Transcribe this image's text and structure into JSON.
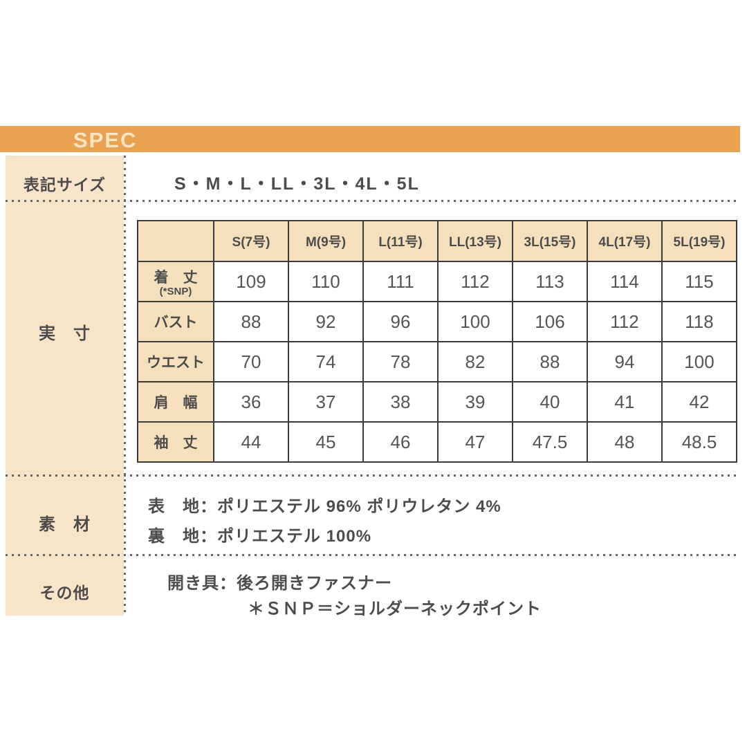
{
  "colors": {
    "banner_orange": "#e9a250",
    "banner_text": "#f8e3c2",
    "sidebar_peach": "#f8e5c9",
    "table_header_peach": "#f5dfbd",
    "table_border": "#3b3b3b",
    "text_gray": "#4c4c4c",
    "dots_gray": "#666666"
  },
  "banner": {
    "title": "SPEC"
  },
  "sidebar": {
    "size_label": "表記サイズ",
    "actual_label": "実　寸",
    "material_label": "素　材",
    "other_label": "その他"
  },
  "size_row": {
    "value": "S・M・L・LL・3L・4L・5L"
  },
  "table": {
    "columns": [
      "S(7号)",
      "M(9号)",
      "L(11号)",
      "LL(13号)",
      "3L(15号)",
      "4L(17号)",
      "5L(19号)"
    ],
    "rows": [
      {
        "label": "着　丈",
        "sublabel": "(*SNP)",
        "values": [
          "109",
          "110",
          "111",
          "112",
          "113",
          "114",
          "115"
        ]
      },
      {
        "label": "バスト",
        "sublabel": "",
        "values": [
          "88",
          "92",
          "96",
          "100",
          "106",
          "112",
          "118"
        ]
      },
      {
        "label": "ウエスト",
        "sublabel": "",
        "values": [
          "70",
          "74",
          "78",
          "82",
          "88",
          "94",
          "100"
        ]
      },
      {
        "label": "肩　幅",
        "sublabel": "",
        "values": [
          "36",
          "37",
          "38",
          "39",
          "40",
          "41",
          "42"
        ]
      },
      {
        "label": "袖　丈",
        "sublabel": "",
        "values": [
          "44",
          "45",
          "46",
          "47",
          "47.5",
          "48",
          "48.5"
        ]
      }
    ]
  },
  "material": {
    "line1": "表　地：ポリエステル 96% ポリウレタン 4%",
    "line2": "裏　地：ポリエステル 100%"
  },
  "other": {
    "line1": "開き具：後ろ開きファスナー",
    "line2": "＊ＳＮＰ＝ショルダーネックポイント"
  }
}
